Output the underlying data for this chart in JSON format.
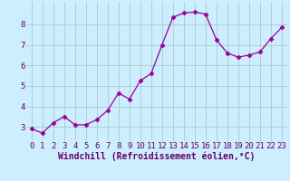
{
  "x": [
    0,
    1,
    2,
    3,
    4,
    5,
    6,
    7,
    8,
    9,
    10,
    11,
    12,
    13,
    14,
    15,
    16,
    17,
    18,
    19,
    20,
    21,
    22,
    23
  ],
  "y": [
    2.9,
    2.7,
    3.2,
    3.5,
    3.1,
    3.1,
    3.35,
    3.8,
    4.65,
    4.35,
    5.25,
    5.6,
    7.0,
    8.35,
    8.55,
    8.6,
    8.5,
    7.25,
    6.6,
    6.4,
    6.5,
    6.65,
    7.3,
    7.85
  ],
  "line_color": "#990099",
  "marker": "D",
  "marker_size": 2.5,
  "background_color": "#cceeff",
  "grid_color": "#aacccc",
  "xlabel": "Windchill (Refroidissement éolien,°C)",
  "xlim": [
    -0.5,
    23.5
  ],
  "ylim": [
    2.3,
    9.1
  ],
  "yticks": [
    3,
    4,
    5,
    6,
    7,
    8
  ],
  "xticks": [
    0,
    1,
    2,
    3,
    4,
    5,
    6,
    7,
    8,
    9,
    10,
    11,
    12,
    13,
    14,
    15,
    16,
    17,
    18,
    19,
    20,
    21,
    22,
    23
  ],
  "xlabel_color": "#660066",
  "tick_color": "#660066",
  "xlabel_fontsize": 7.0,
  "tick_fontsize": 6.5
}
